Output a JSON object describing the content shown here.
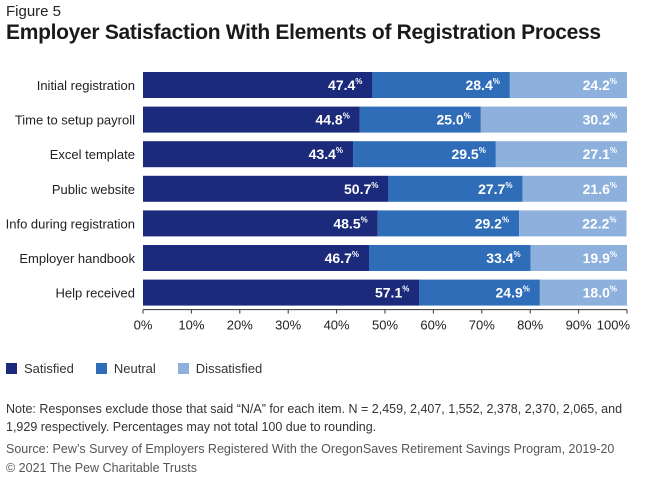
{
  "figure_label": "Figure 5",
  "title": "Employer Satisfaction With Elements of Registration Process",
  "colors": {
    "Satisfied": "#1b2a7a",
    "Neutral": "#2f6db8",
    "Dissatisfied": "#8db0dc"
  },
  "legend": [
    "Satisfied",
    "Neutral",
    "Dissatisfied"
  ],
  "chart_data": {
    "type": "bar",
    "orientation": "horizontal",
    "stacked": true,
    "categories": [
      "Initial registration",
      "Time to setup payroll",
      "Excel template",
      "Public website",
      "Info during registration",
      "Employer handbook",
      "Help received"
    ],
    "series": [
      {
        "name": "Satisfied",
        "values": [
          47.4,
          44.8,
          43.4,
          50.7,
          48.5,
          46.7,
          57.1
        ]
      },
      {
        "name": "Neutral",
        "values": [
          28.4,
          25.0,
          29.5,
          27.7,
          29.2,
          33.4,
          24.9
        ]
      },
      {
        "name": "Dissatisfied",
        "values": [
          24.2,
          30.2,
          27.1,
          21.6,
          22.2,
          19.9,
          18.0
        ]
      }
    ],
    "value_suffix": "%",
    "xlim": [
      0,
      100
    ],
    "xticks": [
      "0%",
      "10%",
      "20%",
      "30%",
      "40%",
      "50%",
      "60%",
      "70%",
      "80%",
      "90%",
      "100%"
    ],
    "legend_position": "bottom-left",
    "grid": false
  },
  "note": "Note: Responses exclude those that said “N/A” for each item. N = 2,459, 2,407, 1,552, 2,378, 2,370, 2,065, and 1,929 respectively. Percentages may not total 100 due to rounding.",
  "source": "Source: Pew’s Survey of Employers Registered With the OregonSaves Retirement Savings Program, 2019-20",
  "copyright": "© 2021 The Pew Charitable Trusts"
}
